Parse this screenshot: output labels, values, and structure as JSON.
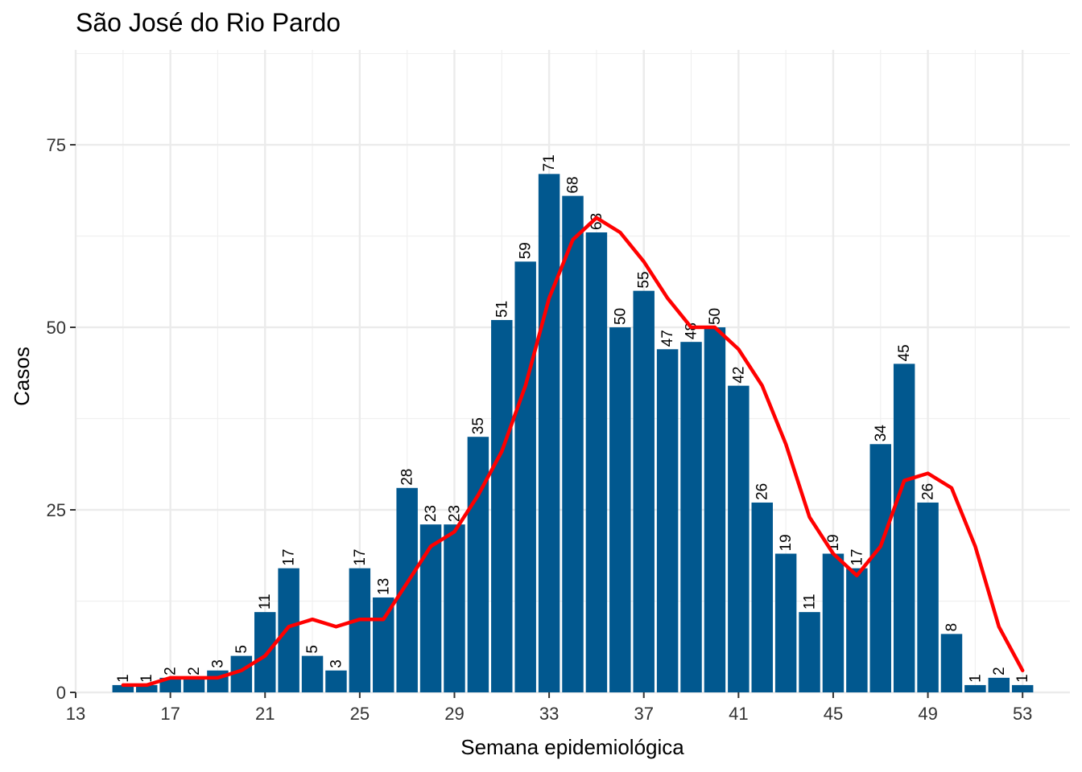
{
  "chart_data": {
    "type": "bar",
    "title": "São José do Rio Pardo",
    "xlabel": "Semana epidemiológica",
    "ylabel": "Casos",
    "x": [
      15,
      16,
      17,
      18,
      19,
      20,
      21,
      22,
      23,
      24,
      25,
      26,
      27,
      28,
      29,
      30,
      31,
      32,
      33,
      34,
      35,
      36,
      37,
      38,
      39,
      40,
      41,
      42,
      43,
      44,
      45,
      46,
      47,
      48,
      49,
      50,
      51,
      52,
      53
    ],
    "values": [
      1,
      1,
      2,
      2,
      3,
      5,
      11,
      17,
      5,
      3,
      17,
      13,
      28,
      23,
      23,
      35,
      51,
      59,
      71,
      68,
      63,
      50,
      55,
      47,
      48,
      50,
      42,
      26,
      19,
      11,
      19,
      17,
      34,
      45,
      26,
      8,
      1,
      2,
      1
    ],
    "trend_line": [
      1,
      1,
      2,
      2,
      2,
      3,
      5,
      9,
      10,
      9,
      10,
      10,
      15,
      20,
      22,
      27,
      33,
      42,
      54,
      62,
      65,
      63,
      59,
      54,
      50,
      50,
      47,
      42,
      34,
      24,
      19,
      16,
      20,
      29,
      30,
      28,
      20,
      9,
      3
    ],
    "x_ticks": [
      13,
      17,
      21,
      25,
      29,
      33,
      37,
      41,
      45,
      49,
      53
    ],
    "y_ticks": [
      0,
      25,
      50,
      75
    ],
    "xlim": [
      13,
      55
    ],
    "ylim": [
      0,
      88
    ],
    "grid": true,
    "bar_color": "#01588f",
    "line_color": "#ff0000"
  }
}
